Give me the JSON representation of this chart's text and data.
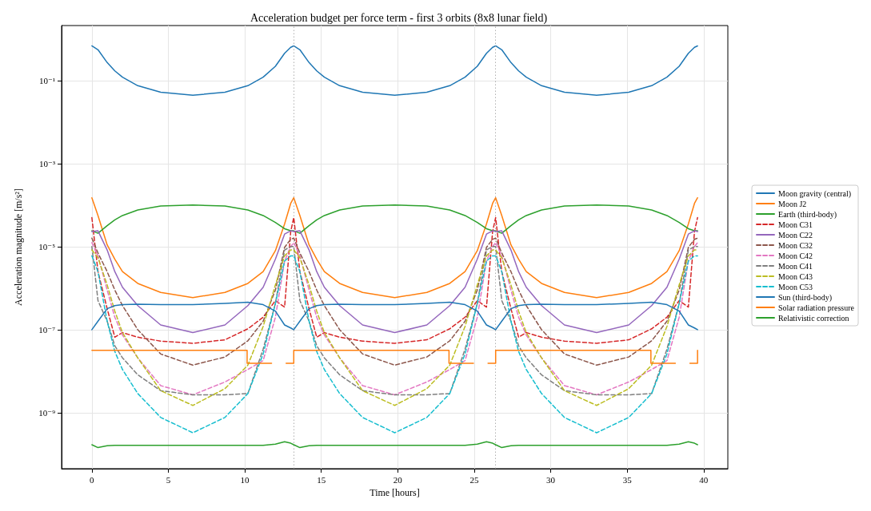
{
  "chart_data": {
    "type": "line",
    "title": "Acceleration budget per force term - first 3 orbits (8x8 lunar field)",
    "xlabel": "Time [hours]",
    "ylabel": "Acceleration magnitude [m/s²]",
    "x": [
      0,
      0.4,
      1,
      1.5,
      2,
      3,
      4.5,
      6.6,
      8.7,
      10.2,
      11.2,
      12.0,
      12.6,
      13.0,
      13.2,
      13.6,
      14.2,
      14.7,
      15.2,
      16.2,
      17.7,
      19.8,
      21.9,
      23.4,
      24.4,
      25.2,
      25.8,
      26.2,
      26.4,
      26.8,
      27.4,
      27.9,
      28.4,
      29.4,
      30.9,
      33,
      35.1,
      36.6,
      37.6,
      38.4,
      39,
      39.4,
      39.6
    ],
    "series": [
      {
        "name": "Moon gravity (central)",
        "color": "#1f77b4",
        "values": [
          0.68,
          0.55,
          0.27,
          0.17,
          0.12,
          0.075,
          0.052,
          0.044,
          0.052,
          0.075,
          0.12,
          0.22,
          0.45,
          0.63,
          0.68,
          0.55,
          0.27,
          0.17,
          0.12,
          0.075,
          0.052,
          0.044,
          0.052,
          0.075,
          0.12,
          0.22,
          0.45,
          0.63,
          0.68,
          0.55,
          0.27,
          0.17,
          0.12,
          0.075,
          0.052,
          0.044,
          0.052,
          0.075,
          0.12,
          0.22,
          0.45,
          0.63,
          0.68
        ]
      },
      {
        "name": "Moon J2",
        "color": "#ff7f0e",
        "values": [
          0.00015,
          5.6e-05,
          1.1e-05,
          5e-06,
          2.5e-06,
          1.3e-06,
          7.9e-07,
          5.9e-07,
          7.9e-07,
          1.3e-06,
          2.5e-06,
          8e-06,
          3.5e-05,
          0.00011,
          0.00015,
          5.6e-05,
          1.1e-05,
          5e-06,
          2.5e-06,
          1.3e-06,
          7.9e-07,
          5.9e-07,
          7.9e-07,
          1.3e-06,
          2.5e-06,
          8e-06,
          3.5e-05,
          0.00011,
          0.00015,
          5.6e-05,
          1.1e-05,
          5e-06,
          2.5e-06,
          1.3e-06,
          7.9e-07,
          5.9e-07,
          7.9e-07,
          1.3e-06,
          2.5e-06,
          8e-06,
          3.5e-05,
          0.00011,
          0.00015
        ]
      },
      {
        "name": "Earth (third-body)",
        "color": "#2ca02c",
        "values": [
          2.4e-05,
          2.1e-05,
          3.2e-05,
          4.4e-05,
          5.6e-05,
          7.6e-05,
          9.5e-05,
          0.0001,
          9.5e-05,
          7.6e-05,
          5.6e-05,
          3.8e-05,
          2.7e-05,
          2.4e-05,
          2.4e-05,
          2.1e-05,
          3.2e-05,
          4.4e-05,
          5.6e-05,
          7.6e-05,
          9.5e-05,
          0.0001,
          9.5e-05,
          7.6e-05,
          5.6e-05,
          3.8e-05,
          2.7e-05,
          2.4e-05,
          2.4e-05,
          2.1e-05,
          3.2e-05,
          4.4e-05,
          5.6e-05,
          7.6e-05,
          9.5e-05,
          0.0001,
          9.5e-05,
          7.6e-05,
          5.6e-05,
          3.8e-05,
          2.7e-05,
          2.4e-05,
          2.4e-05
        ]
      },
      {
        "name": "Moon C31",
        "color": "#d62728",
        "line_style": "dashed",
        "values": [
          5e-05,
          2.5e-06,
          3.2e-07,
          6.6e-08,
          8.5e-08,
          6.6e-08,
          5.3e-08,
          4.7e-08,
          5.7e-08,
          1.05e-07,
          2e-07,
          5e-07,
          3.5e-07,
          2.3e-05,
          5e-05,
          2.5e-06,
          3.2e-07,
          6.6e-08,
          8.5e-08,
          6.6e-08,
          5.3e-08,
          4.7e-08,
          5.7e-08,
          1.05e-07,
          2e-07,
          5e-07,
          3.5e-07,
          2.3e-05,
          5e-05,
          2.5e-06,
          3.2e-07,
          6.6e-08,
          8.5e-08,
          6.6e-08,
          5.3e-08,
          4.7e-08,
          5.7e-08,
          1.05e-07,
          2e-07,
          5e-07,
          3.5e-07,
          2.3e-05,
          5e-05
        ]
      },
      {
        "name": "Moon C22",
        "color": "#9467bd",
        "values": [
          2.3e-05,
          2.4e-05,
          8.3e-06,
          2.5e-06,
          1.05e-06,
          3.8e-07,
          1.3e-07,
          8.5e-08,
          1.3e-07,
          3.8e-07,
          1.05e-06,
          5e-06,
          2e-05,
          2.4e-05,
          2.3e-05,
          2.4e-05,
          8.3e-06,
          2.5e-06,
          1.05e-06,
          3.8e-07,
          1.3e-07,
          8.5e-08,
          1.3e-07,
          3.8e-07,
          1.05e-06,
          5e-06,
          2e-05,
          2.4e-05,
          2.3e-05,
          2.4e-05,
          8.3e-06,
          2.5e-06,
          1.05e-06,
          3.8e-07,
          1.3e-07,
          8.5e-08,
          1.3e-07,
          3.8e-07,
          1.05e-06,
          5e-06,
          2e-05,
          2.4e-05,
          2.3e-05
        ]
      },
      {
        "name": "Moon C32",
        "color": "#8c564b",
        "line_style": "dashed",
        "values": [
          1.6e-05,
          7e-06,
          2.5e-06,
          9e-07,
          3.8e-07,
          1e-07,
          2.6e-08,
          1.4e-08,
          2.2e-08,
          5.4e-08,
          1.6e-07,
          9e-07,
          9.6e-06,
          1.5e-05,
          1.6e-05,
          7e-06,
          2.5e-06,
          9e-07,
          3.8e-07,
          1e-07,
          2.6e-08,
          1.4e-08,
          2.2e-08,
          5.4e-08,
          1.6e-07,
          9e-07,
          9.6e-06,
          1.5e-05,
          1.6e-05,
          7e-06,
          2.5e-06,
          9e-07,
          3.8e-07,
          1e-07,
          2.6e-08,
          1.4e-08,
          2.2e-08,
          5.4e-08,
          1.6e-07,
          9e-07,
          9.6e-06,
          1.5e-05,
          1.6e-05
        ]
      },
      {
        "name": "Moon C42",
        "color": "#e377c2",
        "line_style": "dashed",
        "values": [
          1.25e-05,
          6e-06,
          9e-07,
          2e-07,
          7.4e-08,
          2.1e-08,
          4.5e-09,
          2.7e-09,
          5.5e-09,
          1.1e-08,
          1.8e-08,
          2e-07,
          4.5e-06,
          1e-05,
          1.25e-05,
          6e-06,
          9e-07,
          2e-07,
          7.4e-08,
          2.1e-08,
          4.5e-09,
          2.7e-09,
          5.5e-09,
          1.1e-08,
          1.8e-08,
          2e-07,
          4.5e-06,
          1e-05,
          1.25e-05,
          6e-06,
          9e-07,
          2e-07,
          7.4e-08,
          2.1e-08,
          4.5e-09,
          2.7e-09,
          5.5e-09,
          1.1e-08,
          1.8e-08,
          2e-07,
          4.5e-06,
          1e-05,
          1.25e-05
        ]
      },
      {
        "name": "Moon C41",
        "color": "#7f7f7f",
        "line_style": "dashed",
        "values": [
          1e-05,
          5e-07,
          1.6e-07,
          4.1e-08,
          2.1e-08,
          8.2e-09,
          3.4e-09,
          2.7e-09,
          2.7e-09,
          2.9e-09,
          3.4e-08,
          4.3e-07,
          8.3e-06,
          1e-05,
          1e-05,
          5e-07,
          1.6e-07,
          4.1e-08,
          2.1e-08,
          8.2e-09,
          3.4e-09,
          2.7e-09,
          2.7e-09,
          2.9e-09,
          3.4e-08,
          4.3e-07,
          8.3e-06,
          1e-05,
          1e-05,
          5e-07,
          1.6e-07,
          4.1e-08,
          2.1e-08,
          8.2e-09,
          3.4e-09,
          2.7e-09,
          2.7e-09,
          2.9e-09,
          3.4e-08,
          4.3e-07,
          8.3e-06,
          1e-05,
          1e-05
        ]
      },
      {
        "name": "Moon C43",
        "color": "#bcbd22",
        "line_style": "dashed",
        "values": [
          8.3e-06,
          5.4e-06,
          1.2e-06,
          2.8e-07,
          8.5e-08,
          2.1e-08,
          3.4e-09,
          1.5e-09,
          3.8e-09,
          1.4e-08,
          1.2e-07,
          1.2e-06,
          6e-06,
          8.3e-06,
          8.3e-06,
          5.4e-06,
          1.2e-06,
          2.8e-07,
          8.5e-08,
          2.1e-08,
          3.4e-09,
          1.5e-09,
          3.8e-09,
          1.4e-08,
          1.2e-07,
          1.2e-06,
          6e-06,
          8.3e-06,
          8.3e-06,
          5.4e-06,
          1.2e-06,
          2.8e-07,
          8.5e-08,
          2.1e-08,
          3.4e-09,
          1.5e-09,
          3.8e-09,
          1.4e-08,
          1.2e-07,
          1.2e-06,
          6e-06,
          8.3e-06,
          8.3e-06
        ]
      },
      {
        "name": "Moon C53",
        "color": "#17becf",
        "line_style": "dashed",
        "values": [
          6e-06,
          2.5e-06,
          1.6e-07,
          3e-08,
          1.1e-08,
          2.9e-09,
          7.7e-10,
          3.3e-10,
          7.7e-10,
          2.9e-09,
          2.6e-08,
          4.3e-07,
          4.5e-06,
          6e-06,
          6e-06,
          2.5e-06,
          1.6e-07,
          3e-08,
          1.1e-08,
          2.9e-09,
          7.7e-10,
          3.3e-10,
          7.7e-10,
          2.9e-09,
          2.6e-08,
          4.3e-07,
          4.5e-06,
          6e-06,
          6e-06,
          2.5e-06,
          1.6e-07,
          3e-08,
          1.1e-08,
          2.9e-09,
          7.7e-10,
          3.3e-10,
          7.7e-10,
          2.9e-09,
          2.6e-08,
          4.3e-07,
          4.5e-06,
          6e-06,
          6e-06
        ]
      },
      {
        "name": "Sun (third-body)",
        "color": "#1f77b4",
        "values": [
          1e-07,
          1.6e-07,
          3.2e-07,
          3.8e-07,
          4e-07,
          4.1e-07,
          4e-07,
          4e-07,
          4.3e-07,
          4.6e-07,
          4e-07,
          2.8e-07,
          1.3e-07,
          1.1e-07,
          1e-07,
          1.6e-07,
          3.2e-07,
          3.8e-07,
          4e-07,
          4.1e-07,
          4e-07,
          4e-07,
          4.3e-07,
          4.6e-07,
          4e-07,
          2.8e-07,
          1.3e-07,
          1.1e-07,
          1e-07,
          1.6e-07,
          3.2e-07,
          3.8e-07,
          4e-07,
          4.1e-07,
          4e-07,
          4e-07,
          4.3e-07,
          4.6e-07,
          4e-07,
          2.8e-07,
          1.3e-07,
          1.1e-07,
          1e-07
        ]
      },
      {
        "name": "Solar radiation pressure",
        "color": "#ff7f0e",
        "x": [
          0,
          10.15,
          10.15,
          11.75
        ],
        "values": [
          3.2e-08,
          3.2e-08,
          1.55e-08,
          1.55e-08
        ]
      },
      {
        "color": "#ff7f0e",
        "x": [
          12.7,
          13.2,
          13.2,
          23.35,
          23.35,
          24.95
        ],
        "values": [
          1.55e-08,
          1.55e-08,
          3.2e-08,
          3.2e-08,
          1.55e-08,
          1.55e-08
        ]
      },
      {
        "color": "#ff7f0e",
        "x": [
          25.9,
          26.4,
          26.4,
          36.55,
          36.55,
          38.15
        ],
        "values": [
          1.55e-08,
          1.55e-08,
          3.2e-08,
          3.2e-08,
          1.55e-08,
          1.55e-08
        ]
      },
      {
        "color": "#ff7f0e",
        "x": [
          39.1,
          39.6,
          39.6
        ],
        "values": [
          1.55e-08,
          1.55e-08,
          3.2e-08
        ]
      },
      {
        "name": "Relativistic correction",
        "color": "#2ca02c",
        "values": [
          1.7e-10,
          1.45e-10,
          1.6e-10,
          1.65e-10,
          1.65e-10,
          1.65e-10,
          1.65e-10,
          1.65e-10,
          1.65e-10,
          1.65e-10,
          1.65e-10,
          1.75e-10,
          2e-10,
          1.85e-10,
          1.7e-10,
          1.45e-10,
          1.6e-10,
          1.65e-10,
          1.65e-10,
          1.65e-10,
          1.65e-10,
          1.65e-10,
          1.65e-10,
          1.65e-10,
          1.65e-10,
          1.75e-10,
          2e-10,
          1.85e-10,
          1.7e-10,
          1.45e-10,
          1.6e-10,
          1.65e-10,
          1.65e-10,
          1.65e-10,
          1.65e-10,
          1.65e-10,
          1.65e-10,
          1.65e-10,
          1.65e-10,
          1.75e-10,
          2e-10,
          1.85e-10,
          1.7e-10
        ]
      }
    ],
    "xlim": [
      -1.98,
      41.58
    ],
    "xticks": [
      0,
      5,
      10,
      15,
      20,
      25,
      30,
      35,
      40
    ],
    "ylim": [
      4.5e-11,
      2.1
    ],
    "yticks": [
      {
        "value": 0.1,
        "label": "10⁻¹"
      },
      {
        "value": 0.001,
        "label": "10⁻³"
      },
      {
        "value": 1e-05,
        "label": "10⁻⁵"
      },
      {
        "value": 1e-07,
        "label": "10⁻⁷"
      },
      {
        "value": 1e-09,
        "label": "10⁻⁹"
      }
    ],
    "log": "y",
    "grid": true,
    "legend": "right",
    "line_style": "solid",
    "ref_lines": [
      {
        "axis": "x",
        "value": 13.2,
        "color": "#b0b0b0",
        "line_style": "dotted"
      },
      {
        "axis": "x",
        "value": 26.4,
        "color": "#b0b0b0",
        "line_style": "dotted"
      }
    ]
  }
}
